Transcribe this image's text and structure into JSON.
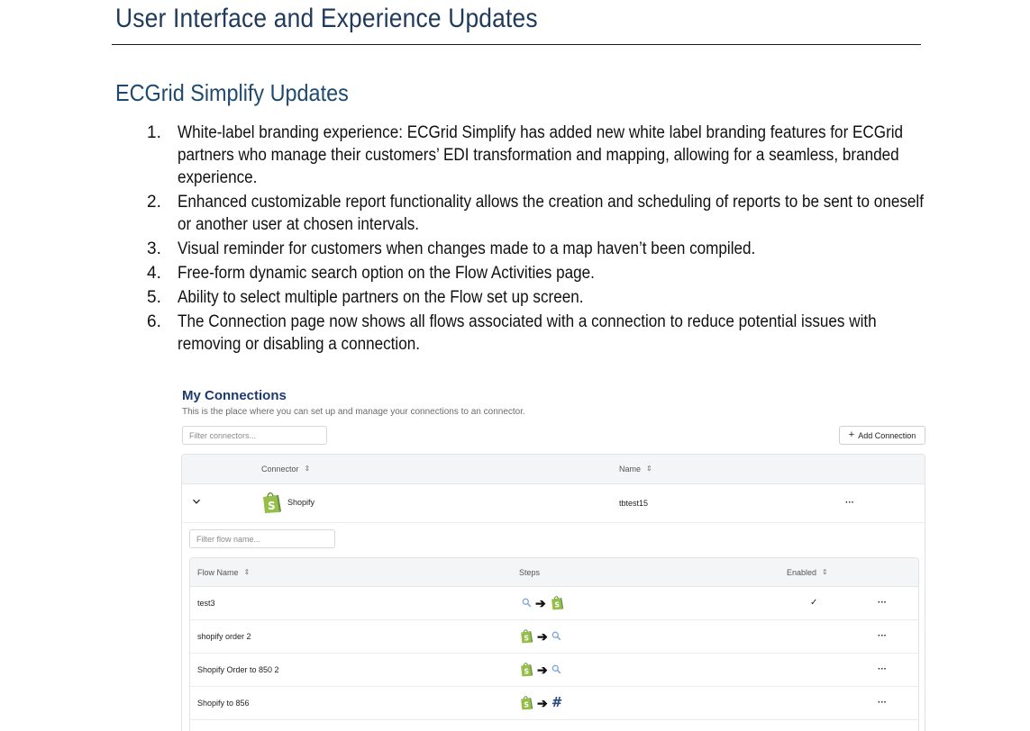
{
  "document": {
    "title": "User Interface and Experience Updates",
    "section_title": "ECGrid Simplify Updates",
    "items": [
      {
        "num": "1.",
        "text": "White-label branding experience: ECGrid Simplify has added new white label branding features for ECGrid partners who manage their customers’ EDI transformation and mapping, allowing for a seamless, branded experience."
      },
      {
        "num": "2.",
        "text": "Enhanced customizable report functionality allows the creation and scheduling of reports to be sent to oneself or another user at chosen intervals."
      },
      {
        "num": "3.",
        "text": "Visual reminder for customers when changes made to a map haven’t been compiled."
      },
      {
        "num": "4.",
        "text": "Free-form dynamic search option on the Flow Activities page."
      },
      {
        "num": "5.",
        "text": "Ability to select multiple partners on the Flow set up screen."
      },
      {
        "num": "6.",
        "text": "The Connection page now shows all flows associated with a connection to reduce potential issues with removing or disabling a connection."
      }
    ]
  },
  "screenshot": {
    "heading": "My Connections",
    "subtitle": "This is the place where you can set up and manage your connections to an connector.",
    "filter_connectors_placeholder": "Filter connectors...",
    "add_connection_label": "Add Connection",
    "connections_headers": {
      "connector": "Connector",
      "name": "Name"
    },
    "connection": {
      "connector": "Shopify",
      "name": "tbtest15",
      "actions": "···"
    },
    "filter_flow_placeholder": "Filter flow name...",
    "flow_headers": {
      "flow_name": "Flow Name",
      "steps": "Steps",
      "enabled": "Enabled"
    },
    "flows": [
      {
        "name": "test3",
        "steps": [
          "search-icon",
          "shopify-icon"
        ],
        "enabled": "✓",
        "actions": "···"
      },
      {
        "name": "shopify order 2",
        "steps": [
          "shopify-icon",
          "search-icon"
        ],
        "enabled": "",
        "actions": "···"
      },
      {
        "name": "Shopify Order to 850 2",
        "steps": [
          "shopify-icon",
          "search-icon"
        ],
        "enabled": "",
        "actions": "···"
      },
      {
        "name": "Shopify to 856",
        "steps": [
          "shopify-icon",
          "hash-icon"
        ],
        "enabled": "",
        "actions": "···"
      }
    ],
    "colors": {
      "heading": "#1d3a6b",
      "shopify_green": "#95bf47",
      "shopify_dark": "#5e8e3e"
    }
  }
}
